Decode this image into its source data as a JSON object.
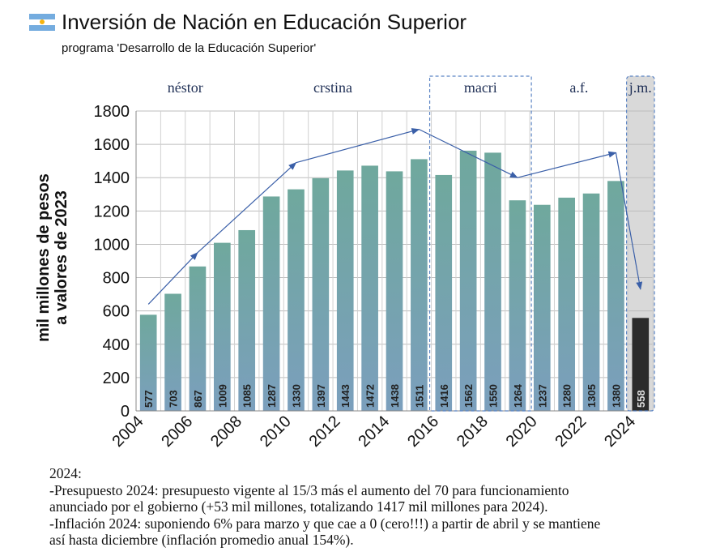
{
  "header": {
    "title": "Inversión de Nación en Educación Superior",
    "subtitle": "programa 'Desarrollo de la Educación Superior'",
    "flag_icon": "argentina-flag-icon"
  },
  "chart_data": {
    "type": "bar",
    "title": "Inversión de Nación en Educación Superior",
    "subtitle": "programa 'Desarrollo de la Educación Superior'",
    "ylabel": [
      "mil millones de pesos",
      "a valores de 2023"
    ],
    "xlabel": "",
    "categories": [
      "2004",
      "2005",
      "2006",
      "2007",
      "2008",
      "2009",
      "2010",
      "2011",
      "2012",
      "2013",
      "2014",
      "2015",
      "2016",
      "2017",
      "2018",
      "2019",
      "2020",
      "2021",
      "2022",
      "2023",
      "2024"
    ],
    "values": [
      577,
      703,
      867,
      1009,
      1085,
      1287,
      1330,
      1397,
      1443,
      1472,
      1438,
      1511,
      1416,
      1562,
      1550,
      1264,
      1237,
      1280,
      1305,
      1380,
      558
    ],
    "value_labels": [
      "577",
      "703",
      "867",
      "1009",
      "1085",
      "1287",
      "1330",
      "1397",
      "1443",
      "1472",
      "1438",
      "1511",
      "1416",
      "1562",
      "1550",
      "1264",
      "1237",
      "1280",
      "1305",
      "1380",
      "558"
    ],
    "ylim": [
      0,
      1800
    ],
    "yticks": [
      0,
      200,
      400,
      600,
      800,
      1000,
      1200,
      1400,
      1600,
      1800
    ],
    "ytick_labels": [
      "0",
      "200",
      "400",
      "600",
      "800",
      "1000",
      "1200",
      "1400",
      "1600",
      "1800"
    ],
    "xtick_labels": [
      "2004",
      "2006",
      "2008",
      "2010",
      "2012",
      "2014",
      "2016",
      "2018",
      "2020",
      "2022",
      "2024"
    ],
    "grid": true,
    "periods": [
      {
        "label": "néstor",
        "from": "2004",
        "to": "2007",
        "boxed": false
      },
      {
        "label": "crstina",
        "from": "2008",
        "to": "2015",
        "boxed": false
      },
      {
        "label": "macri",
        "from": "2016",
        "to": "2019",
        "boxed": true
      },
      {
        "label": "a.f.",
        "from": "2020",
        "to": "2023",
        "boxed": false
      },
      {
        "label": "j.m.",
        "from": "2024",
        "to": "2024",
        "boxed": true,
        "shaded": true
      }
    ],
    "trend_arrows": [
      {
        "from": [
          "2004",
          640
        ],
        "to": [
          "2006",
          950
        ]
      },
      {
        "from": [
          "2006",
          950
        ],
        "to": [
          "2010",
          1490
        ]
      },
      {
        "from": [
          "2010",
          1490
        ],
        "to": [
          "2015",
          1690
        ]
      },
      {
        "from": [
          "2015",
          1690
        ],
        "to": [
          "2019",
          1400
        ]
      },
      {
        "from": [
          "2019",
          1400
        ],
        "to": [
          "2023",
          1550
        ]
      },
      {
        "from": [
          "2023",
          1550
        ],
        "to": [
          "2024",
          730
        ]
      }
    ],
    "colors": {
      "bar_top": "#6fa89d",
      "bar_bottom": "#7b9fbd",
      "bar_last": "#2b2b2b",
      "arrow": "#3a5fa8",
      "shade": "#d9d9d9",
      "box_border": "#5b84c4"
    }
  },
  "notes": {
    "lines": [
      "2024:",
      "-Presupuesto 2024: presupuesto vigente al 15/3 más el aumento del 70 para funcionamiento",
      "anunciado por el gobierno (+53 mil millones, totalizando 1417 mil millones para 2024).",
      "-Inflación 2024: suponiendo 6% para marzo y que cae a 0 (cero!!!) a partir de abril y se mantiene",
      "así hasta diciembre (inflación promedio anual 154%)."
    ]
  }
}
